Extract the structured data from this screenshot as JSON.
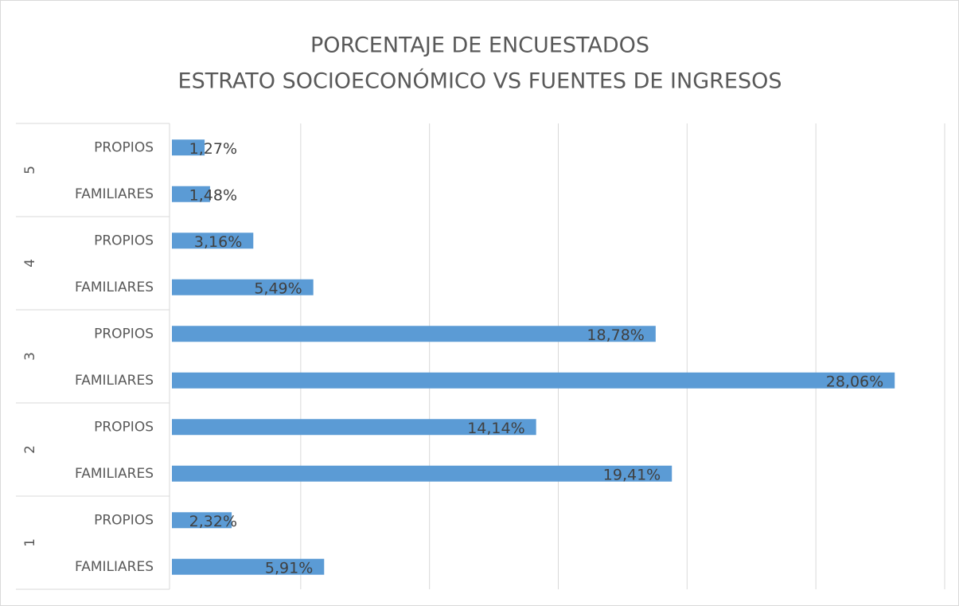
{
  "chart_data": {
    "type": "bar",
    "orientation": "horizontal",
    "title": [
      "PORCENTAJE DE ENCUESTADOS",
      "ESTRATO SOCIOECONÓMICO VS FUENTES DE INGRESOS"
    ],
    "groups": [
      {
        "name": "5",
        "categories": [
          "PROPIOS",
          "FAMILIARES"
        ],
        "values": [
          1.27,
          1.48
        ],
        "value_labels": [
          "1,27%",
          "1,48%"
        ]
      },
      {
        "name": "4",
        "categories": [
          "PROPIOS",
          "FAMILIARES"
        ],
        "values": [
          3.16,
          5.49
        ],
        "value_labels": [
          "3,16%",
          "5,49%"
        ]
      },
      {
        "name": "3",
        "categories": [
          "PROPIOS",
          "FAMILIARES"
        ],
        "values": [
          18.78,
          28.06
        ],
        "value_labels": [
          "18,78%",
          "28,06%"
        ]
      },
      {
        "name": "2",
        "categories": [
          "PROPIOS",
          "FAMILIARES"
        ],
        "values": [
          14.14,
          19.41
        ],
        "value_labels": [
          "14,14%",
          "19,41%"
        ]
      },
      {
        "name": "1",
        "categories": [
          "PROPIOS",
          "FAMILIARES"
        ],
        "values": [
          2.32,
          5.91
        ],
        "value_labels": [
          "2,32%",
          "5,91%"
        ]
      }
    ],
    "color": "#5b9bd5",
    "xlim": [
      0,
      30
    ],
    "xticks": [
      0,
      5,
      10,
      15,
      20,
      25,
      30
    ],
    "grid": true
  }
}
